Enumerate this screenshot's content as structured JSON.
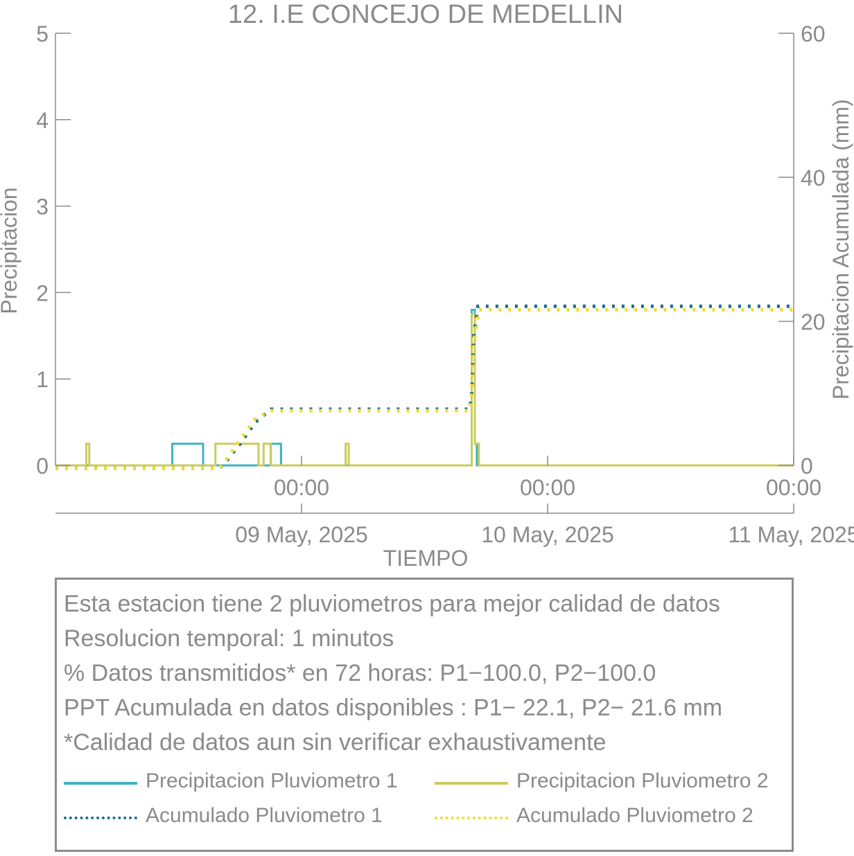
{
  "chart_data": {
    "type": "line",
    "title": "12. I.E CONCEJO DE MEDELLIN",
    "xlabel": "TIEMPO",
    "ylabel_left": "Precipitacion",
    "ylabel_right": "Precipitacion Acumulada (mm)",
    "ylim_left": [
      0,
      5
    ],
    "ylim_right": [
      0,
      60
    ],
    "yticks_left": [
      0,
      1,
      2,
      3,
      4,
      5
    ],
    "yticks_right": [
      0,
      20,
      40,
      60
    ],
    "xlim_hours": [
      -24,
      48
    ],
    "xticks": [
      {
        "hour": 0,
        "time": "00:00",
        "date": "09 May, 2025"
      },
      {
        "hour": 24,
        "time": "00:00",
        "date": "10 May, 2025"
      },
      {
        "hour": 48,
        "time": "00:00",
        "date": "11 May, 2025"
      }
    ],
    "grid": false,
    "series": [
      {
        "name": "Precipitacion Pluviometro 1",
        "axis": "left",
        "style": "solid",
        "color": "#3fb2c4",
        "points": [
          [
            -24,
            0
          ],
          [
            -12.6,
            0
          ],
          [
            -12.6,
            0.25
          ],
          [
            -9.6,
            0.25
          ],
          [
            -9.6,
            0
          ],
          [
            -3,
            0
          ],
          [
            -3,
            0.25
          ],
          [
            -2,
            0.25
          ],
          [
            -2,
            0
          ],
          [
            16.6,
            0
          ],
          [
            16.6,
            1.8
          ],
          [
            16.9,
            1.8
          ],
          [
            16.9,
            0.25
          ],
          [
            17.1,
            0.25
          ],
          [
            17.1,
            0
          ],
          [
            48,
            0
          ]
        ]
      },
      {
        "name": "Precipitacion Pluviometro 2",
        "axis": "left",
        "style": "solid",
        "color": "#c8cc5c",
        "points": [
          [
            -24,
            0
          ],
          [
            -21,
            0
          ],
          [
            -21,
            0.25
          ],
          [
            -20.7,
            0.25
          ],
          [
            -20.7,
            0
          ],
          [
            -8.4,
            0
          ],
          [
            -8.4,
            0.25
          ],
          [
            -4.2,
            0.25
          ],
          [
            -4.2,
            0
          ],
          [
            -3.7,
            0
          ],
          [
            -3.7,
            0.25
          ],
          [
            -3,
            0.25
          ],
          [
            -3,
            0
          ],
          [
            4.3,
            0
          ],
          [
            4.3,
            0.25
          ],
          [
            4.6,
            0.25
          ],
          [
            4.6,
            0
          ],
          [
            16.6,
            0
          ],
          [
            16.6,
            1.75
          ],
          [
            16.9,
            1.75
          ],
          [
            16.9,
            0.25
          ],
          [
            17.3,
            0.25
          ],
          [
            17.3,
            0
          ],
          [
            48,
            0
          ]
        ]
      },
      {
        "name": "Acumulado Pluviometro 1",
        "axis": "right",
        "style": "dotted",
        "color": "#1a6f8f",
        "points": [
          [
            -24,
            -0.4
          ],
          [
            -8,
            -0.4
          ],
          [
            -7.5,
            0.3
          ],
          [
            -6,
            3
          ],
          [
            -4.5,
            6
          ],
          [
            -3,
            7.8
          ],
          [
            16.4,
            7.8
          ],
          [
            16.6,
            10
          ],
          [
            16.8,
            18
          ],
          [
            17.2,
            22.1
          ],
          [
            48,
            22.1
          ]
        ]
      },
      {
        "name": "Acumulado Pluviometro 2",
        "axis": "right",
        "style": "dotted",
        "color": "#f2dc2e",
        "points": [
          [
            -24,
            -0.4
          ],
          [
            -8,
            -0.4
          ],
          [
            -7.5,
            0.5
          ],
          [
            -6,
            3.5
          ],
          [
            -4.5,
            6.5
          ],
          [
            -3,
            7.6
          ],
          [
            16.4,
            7.6
          ],
          [
            16.6,
            10
          ],
          [
            16.8,
            17
          ],
          [
            17.3,
            21.6
          ],
          [
            48,
            21.6
          ]
        ]
      }
    ]
  },
  "info": {
    "lines": [
      "Esta estacion tiene 2 pluviometros para mejor calidad de datos",
      "Resolucion temporal: 1 minutos",
      "% Datos transmitidos* en 72 horas: P1−100.0, P2−100.0",
      "PPT Acumulada en datos disponibles : P1− 22.1, P2− 21.6 mm",
      "*Calidad de datos aun sin verificar exhaustivamente"
    ]
  },
  "legend": [
    {
      "label": "Precipitacion Pluviometro 1",
      "style": "solid",
      "color": "#3fb2c4"
    },
    {
      "label": "Precipitacion Pluviometro 2",
      "style": "solid",
      "color": "#c8cc5c"
    },
    {
      "label": "Acumulado Pluviometro 1",
      "style": "dotted",
      "color": "#1a6f8f"
    },
    {
      "label": "Acumulado Pluviometro 2",
      "style": "dotted",
      "color": "#f2dc2e"
    }
  ]
}
